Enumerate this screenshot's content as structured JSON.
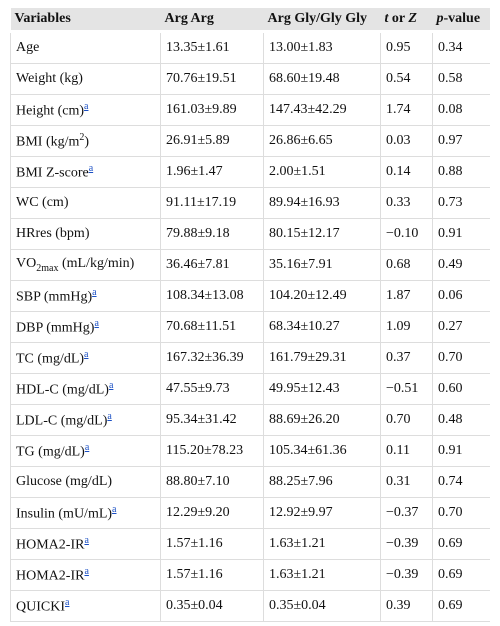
{
  "table": {
    "header": {
      "variables": "Variables",
      "arg_arg": "Arg Arg",
      "arg_gly": "Arg Gly/Gly Gly",
      "t_or_z": [
        "t",
        " or ",
        "Z"
      ],
      "p_value": [
        "p",
        "-value"
      ]
    },
    "rows": [
      {
        "variable": [
          {
            "t": "Age"
          }
        ],
        "values": [
          "13.35±1.61",
          "13.00±1.83",
          "0.95",
          "0.34"
        ]
      },
      {
        "variable": [
          {
            "t": "Weight (kg)"
          }
        ],
        "values": [
          "70.76±19.51",
          "68.60±19.48",
          "0.54",
          "0.58"
        ]
      },
      {
        "variable": [
          {
            "t": "Height (cm)"
          },
          {
            "sup": "a"
          }
        ],
        "values": [
          "161.03±9.89",
          "147.43±42.29",
          "1.74",
          "0.08"
        ]
      },
      {
        "variable": [
          {
            "t": "BMI (kg/m"
          },
          {
            "exp": "2"
          },
          {
            "t": ")"
          }
        ],
        "values": [
          "26.91±5.89",
          "26.86±6.65",
          "0.03",
          "0.97"
        ]
      },
      {
        "variable": [
          {
            "t": "BMI Z-score"
          },
          {
            "sup": "a"
          }
        ],
        "values": [
          "1.96±1.47",
          "2.00±1.51",
          "0.14",
          "0.88"
        ]
      },
      {
        "variable": [
          {
            "t": "WC (cm)"
          }
        ],
        "values": [
          "91.11±17.19",
          "89.94±16.93",
          "0.33",
          "0.73"
        ]
      },
      {
        "variable": [
          {
            "t": "HRres (bpm)"
          }
        ],
        "values": [
          "79.88±9.18",
          "80.15±12.17",
          "−0.10",
          "0.91"
        ]
      },
      {
        "variable": [
          {
            "t": "VO"
          },
          {
            "sub": "2max"
          },
          {
            "t": " (mL/kg/min)"
          }
        ],
        "values": [
          "36.46±7.81",
          "35.16±7.91",
          "0.68",
          "0.49"
        ]
      },
      {
        "variable": [
          {
            "t": "SBP (mmHg)"
          },
          {
            "sup": "a"
          }
        ],
        "values": [
          "108.34±13.08",
          "104.20±12.49",
          "1.87",
          "0.06"
        ]
      },
      {
        "variable": [
          {
            "t": "DBP (mmHg)"
          },
          {
            "sup": "a"
          }
        ],
        "values": [
          "70.68±11.51",
          "68.34±10.27",
          "1.09",
          "0.27"
        ]
      },
      {
        "variable": [
          {
            "t": "TC (mg/dL)"
          },
          {
            "sup": "a"
          }
        ],
        "values": [
          "167.32±36.39",
          "161.79±29.31",
          "0.37",
          "0.70"
        ]
      },
      {
        "variable": [
          {
            "t": "HDL-C (mg/dL)"
          },
          {
            "sup": "a"
          }
        ],
        "values": [
          "47.55±9.73",
          "49.95±12.43",
          "−0.51",
          "0.60"
        ]
      },
      {
        "variable": [
          {
            "t": "LDL-C (mg/dL)"
          },
          {
            "sup": "a"
          }
        ],
        "values": [
          "95.34±31.42",
          "88.69±26.20",
          "0.70",
          "0.48"
        ]
      },
      {
        "variable": [
          {
            "t": "TG (mg/dL)"
          },
          {
            "sup": "a"
          }
        ],
        "values": [
          "115.20±78.23",
          "105.34±61.36",
          "0.11",
          "0.91"
        ]
      },
      {
        "variable": [
          {
            "t": "Glucose (mg/dL)"
          }
        ],
        "values": [
          "88.80±7.10",
          "88.25±7.96",
          "0.31",
          "0.74"
        ]
      },
      {
        "variable": [
          {
            "t": "Insulin (mU/mL)"
          },
          {
            "sup": "a"
          }
        ],
        "values": [
          "12.29±9.20",
          "12.92±9.97",
          "−0.37",
          "0.70"
        ]
      },
      {
        "variable": [
          {
            "t": "HOMA2-IR"
          },
          {
            "sup": "a"
          }
        ],
        "values": [
          "1.57±1.16",
          "1.63±1.21",
          "−0.39",
          "0.69"
        ]
      },
      {
        "variable": [
          {
            "t": "HOMA2-IR"
          },
          {
            "sup": "a"
          }
        ],
        "values": [
          "1.57±1.16",
          "1.63±1.21",
          "−0.39",
          "0.69"
        ]
      },
      {
        "variable": [
          {
            "t": "QUICKI"
          },
          {
            "sup": "a"
          }
        ],
        "values": [
          "0.35±0.04",
          "0.35±0.04",
          "0.39",
          "0.69"
        ]
      }
    ]
  }
}
